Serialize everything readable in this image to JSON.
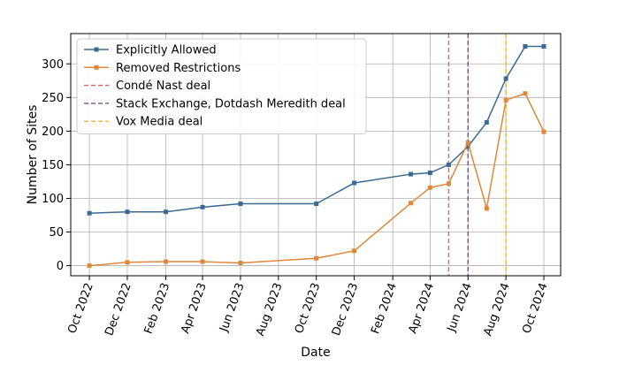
{
  "chart_data": {
    "type": "line",
    "xlabel": "Date",
    "ylabel": "Number of Sites",
    "x_range": [
      "2022-09-01",
      "2024-10-28"
    ],
    "ylim": [
      -15,
      345
    ],
    "grid": true,
    "legend_position": "top-left",
    "x_ticks": [
      {
        "date": "2022-10-01",
        "label": "Oct 2022"
      },
      {
        "date": "2022-12-01",
        "label": "Dec 2022"
      },
      {
        "date": "2023-02-01",
        "label": "Feb 2023"
      },
      {
        "date": "2023-04-01",
        "label": "Apr 2023"
      },
      {
        "date": "2023-06-01",
        "label": "Jun 2023"
      },
      {
        "date": "2023-08-01",
        "label": "Aug 2023"
      },
      {
        "date": "2023-10-01",
        "label": "Oct 2023"
      },
      {
        "date": "2023-12-01",
        "label": "Dec 2023"
      },
      {
        "date": "2024-02-01",
        "label": "Feb 2024"
      },
      {
        "date": "2024-04-01",
        "label": "Apr 2024"
      },
      {
        "date": "2024-06-01",
        "label": "Jun 2024"
      },
      {
        "date": "2024-08-01",
        "label": "Aug 2024"
      },
      {
        "date": "2024-10-01",
        "label": "Oct 2024"
      }
    ],
    "y_ticks": [
      0,
      50,
      100,
      150,
      200,
      250,
      300
    ],
    "series": [
      {
        "name": "Explicitly Allowed",
        "color": "#3a6a94",
        "marker": "square",
        "points": [
          {
            "x": "2022-10-01",
            "y": 78
          },
          {
            "x": "2022-12-01",
            "y": 80
          },
          {
            "x": "2023-02-01",
            "y": 80
          },
          {
            "x": "2023-04-01",
            "y": 87
          },
          {
            "x": "2023-06-01",
            "y": 92
          },
          {
            "x": "2023-10-01",
            "y": 92
          },
          {
            "x": "2023-12-01",
            "y": 123
          },
          {
            "x": "2024-03-01",
            "y": 136
          },
          {
            "x": "2024-04-01",
            "y": 138
          },
          {
            "x": "2024-05-01",
            "y": 150
          },
          {
            "x": "2024-06-01",
            "y": 177
          },
          {
            "x": "2024-07-01",
            "y": 213
          },
          {
            "x": "2024-08-01",
            "y": 278
          },
          {
            "x": "2024-09-01",
            "y": 326
          },
          {
            "x": "2024-10-01",
            "y": 326
          }
        ]
      },
      {
        "name": "Removed Restrictions",
        "color": "#e0873c",
        "marker": "square",
        "points": [
          {
            "x": "2022-10-01",
            "y": 0
          },
          {
            "x": "2022-12-01",
            "y": 5
          },
          {
            "x": "2023-02-01",
            "y": 6
          },
          {
            "x": "2023-04-01",
            "y": 6
          },
          {
            "x": "2023-06-01",
            "y": 4
          },
          {
            "x": "2023-10-01",
            "y": 11
          },
          {
            "x": "2023-12-01",
            "y": 22
          },
          {
            "x": "2024-03-01",
            "y": 93
          },
          {
            "x": "2024-04-01",
            "y": 116
          },
          {
            "x": "2024-05-01",
            "y": 122
          },
          {
            "x": "2024-06-01",
            "y": 183
          },
          {
            "x": "2024-07-01",
            "y": 85
          },
          {
            "x": "2024-08-01",
            "y": 246
          },
          {
            "x": "2024-09-01",
            "y": 256
          },
          {
            "x": "2024-10-01",
            "y": 199
          }
        ]
      }
    ],
    "vlines": [
      {
        "name": "Condé Nast deal",
        "x": "2024-05-01",
        "color": "#e06060"
      },
      {
        "name": "Stack Exchange, Dotdash Meredith deal",
        "x": "2024-06-01",
        "color": "#7a4f9a"
      },
      {
        "name": "Vox Media deal",
        "x": "2024-08-01",
        "color": "#e8b830"
      }
    ]
  }
}
